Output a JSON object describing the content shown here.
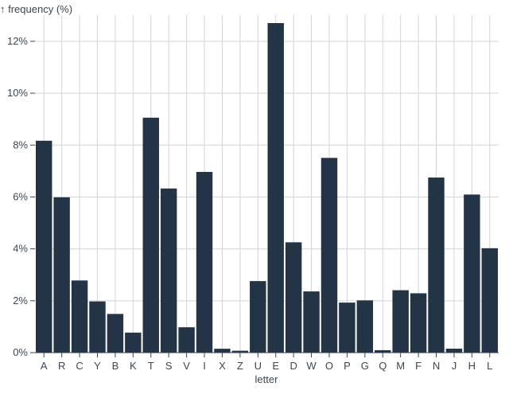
{
  "chart_data": {
    "type": "bar",
    "ylabel": "↑ frequency (%)",
    "xlabel": "letter",
    "categories": [
      "A",
      "R",
      "C",
      "Y",
      "B",
      "K",
      "T",
      "S",
      "V",
      "I",
      "X",
      "Z",
      "U",
      "E",
      "D",
      "W",
      "O",
      "P",
      "G",
      "Q",
      "M",
      "F",
      "N",
      "J",
      "H",
      "L"
    ],
    "values": [
      8.167,
      5.987,
      2.782,
      1.974,
      1.492,
      0.772,
      9.056,
      6.327,
      0.978,
      6.966,
      0.15,
      0.074,
      2.758,
      12.702,
      4.253,
      2.36,
      7.507,
      1.929,
      2.015,
      0.095,
      2.406,
      2.288,
      6.749,
      0.153,
      6.094,
      4.025
    ],
    "ylim": [
      0,
      12.702
    ],
    "yticks": [
      0,
      2,
      4,
      6,
      8,
      10,
      12
    ],
    "ytick_labels": [
      "0%",
      "2%",
      "4%",
      "6%",
      "8%",
      "10%",
      "12%"
    ],
    "grid": true,
    "colors": {
      "bar": "#233446",
      "grid": "#d4d4d4"
    }
  }
}
